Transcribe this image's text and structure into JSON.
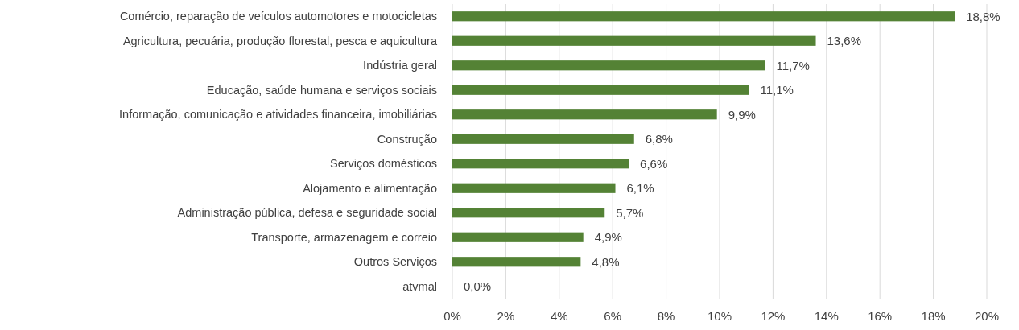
{
  "chart_data": {
    "type": "bar",
    "orientation": "horizontal",
    "categories": [
      "Comércio, reparação de veículos automotores e motocicletas",
      "Agricultura, pecuária, produção florestal, pesca e aquicultura",
      "Indústria geral",
      "Educação, saúde humana e serviços sociais",
      "Informação, comunicação e atividades financeira, imobiliárias",
      "Construção",
      "Serviços domésticos",
      "Alojamento e alimentação",
      "Administração pública, defesa e seguridade social",
      "Transporte, armazenagem e correio",
      "Outros Serviços",
      "atvmal"
    ],
    "values": [
      18.8,
      13.6,
      11.7,
      11.1,
      9.9,
      6.8,
      6.6,
      6.1,
      5.7,
      4.9,
      4.8,
      0.0
    ],
    "value_labels": [
      "18,8%",
      "13,6%",
      "11,7%",
      "11,1%",
      "9,9%",
      "6,8%",
      "6,6%",
      "6,1%",
      "5,7%",
      "4,9%",
      "4,8%",
      "0,0%"
    ],
    "color": "#548235",
    "xlim": [
      0,
      20
    ],
    "xticks": [
      {
        "value": 0,
        "label": "0%"
      },
      {
        "value": 2,
        "label": "2%"
      },
      {
        "value": 4,
        "label": "4%"
      },
      {
        "value": 6,
        "label": "6%"
      },
      {
        "value": 8,
        "label": "8%"
      },
      {
        "value": 10,
        "label": "10%"
      },
      {
        "value": 12,
        "label": "12%"
      },
      {
        "value": 14,
        "label": "14%"
      },
      {
        "value": 16,
        "label": "16%"
      },
      {
        "value": 18,
        "label": "18%"
      },
      {
        "value": 20,
        "label": "20%"
      }
    ],
    "grid": "x"
  }
}
